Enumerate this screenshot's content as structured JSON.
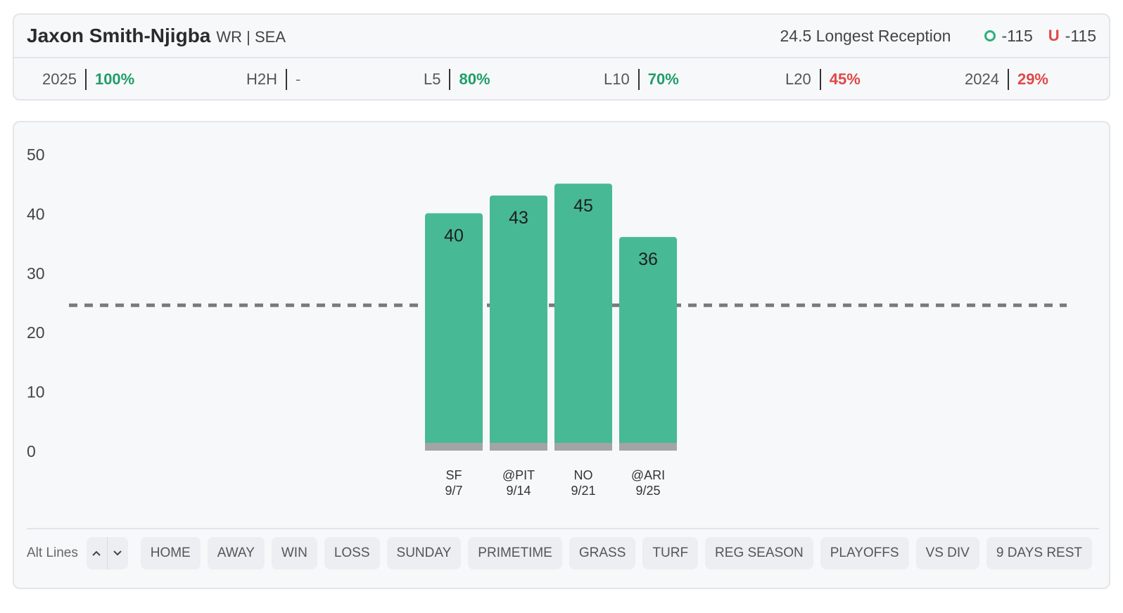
{
  "header": {
    "player_name": "Jaxon Smith-Njigba",
    "player_meta": "WR | SEA",
    "prop_label": "24.5 Longest Reception",
    "over": {
      "tag": "O",
      "odds": "-115",
      "color": "#2bb27a"
    },
    "under": {
      "tag": "U",
      "odds": "-115",
      "color": "#e04848"
    }
  },
  "stats": [
    {
      "label": "2025",
      "value": "100%",
      "tone": "green"
    },
    {
      "label": "H2H",
      "value": "-",
      "tone": "neutral"
    },
    {
      "label": "L5",
      "value": "80%",
      "tone": "green"
    },
    {
      "label": "L10",
      "value": "70%",
      "tone": "green"
    },
    {
      "label": "L20",
      "value": "45%",
      "tone": "red"
    },
    {
      "label": "2024",
      "value": "29%",
      "tone": "red"
    }
  ],
  "chart_data": {
    "type": "bar",
    "categories": [
      "SF",
      "@PIT",
      "NO",
      "@ARI"
    ],
    "dates": [
      "9/7",
      "9/14",
      "9/21",
      "9/25"
    ],
    "values": [
      40,
      43,
      45,
      36
    ],
    "yticks": [
      0,
      10,
      20,
      30,
      40,
      50
    ],
    "ylim": [
      0,
      50
    ],
    "line_value": 24.5,
    "bar_color": "#47b994",
    "base_color": "#a4a4a4",
    "grid": false
  },
  "controls": {
    "alt_lines_label": "Alt Lines",
    "up_icon": "chevron-up-icon",
    "down_icon": "chevron-down-icon",
    "chips": [
      "HOME",
      "AWAY",
      "WIN",
      "LOSS",
      "SUNDAY",
      "PRIMETIME",
      "GRASS",
      "TURF",
      "REG SEASON",
      "PLAYOFFS",
      "VS DIV",
      "9 DAYS REST"
    ]
  }
}
